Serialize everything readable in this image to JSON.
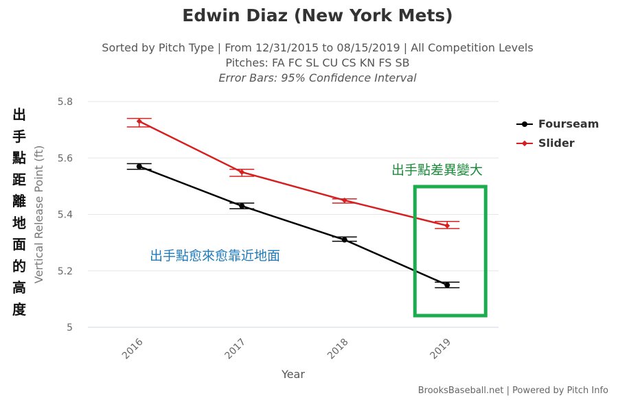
{
  "title": "Edwin Diaz (New York Mets)",
  "subtitle": "Sorted by Pitch Type | From 12/31/2015 to 08/15/2019 | All Competition Levels",
  "pitches_line": "Pitches: FA FC SL CU CS KN FS SB",
  "error_bars_note": "Error Bars: 95% Confidence Interval",
  "left_vertical_label": [
    "出",
    "手",
    "點",
    "距",
    "離",
    "地",
    "面",
    "的",
    "高",
    "度"
  ],
  "annotation_blue": "出手點愈來愈靠近地面",
  "annotation_green": "出手點差異變大",
  "footer": "BrooksBaseball.net | Powered by Pitch Info",
  "colors": {
    "fourseam": "#000000",
    "slider": "#d62020",
    "grid": "#e6e6e6",
    "box": "#1aac4e"
  },
  "chart_data": {
    "type": "line",
    "xlabel": "Year",
    "ylabel": "Vertical Release Point (ft)",
    "categories": [
      "2016",
      "2017",
      "2018",
      "2019"
    ],
    "ylim": [
      5,
      5.8
    ],
    "yticks": [
      "5",
      "5.2",
      "5.4",
      "5.6",
      "5.8"
    ],
    "grid": true,
    "legend_position": "right",
    "series": [
      {
        "name": "Fourseam",
        "marker": "circle",
        "values": [
          5.57,
          5.43,
          5.31,
          5.15
        ],
        "error_low": [
          5.56,
          5.42,
          5.305,
          5.14
        ],
        "error_high": [
          5.58,
          5.44,
          5.32,
          5.16
        ]
      },
      {
        "name": "Slider",
        "marker": "diamond",
        "values": [
          5.73,
          5.55,
          5.45,
          5.36
        ],
        "error_low": [
          5.71,
          5.535,
          5.44,
          5.35
        ],
        "error_high": [
          5.74,
          5.56,
          5.455,
          5.375
        ]
      }
    ],
    "highlight_box_category": "2019"
  }
}
